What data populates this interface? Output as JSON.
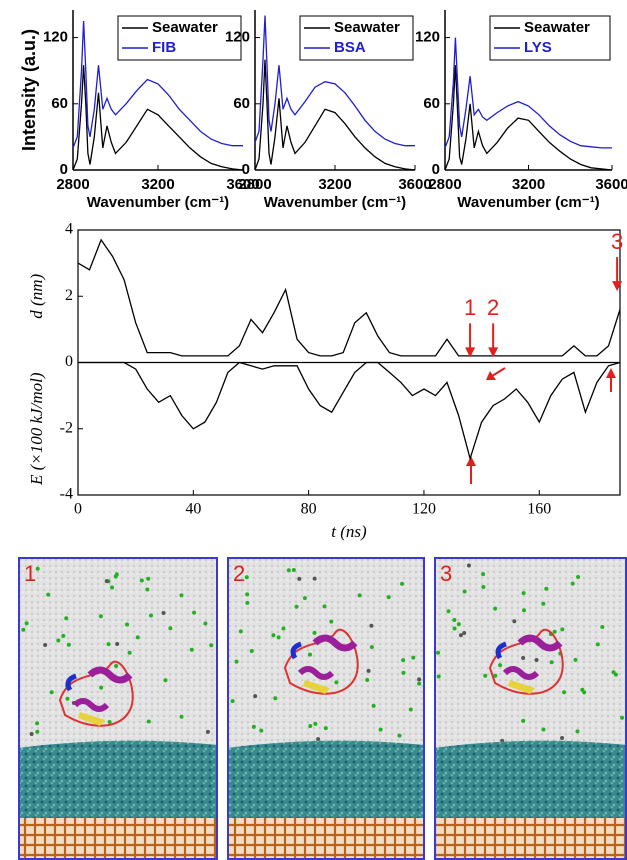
{
  "chart_data": [
    {
      "type": "line",
      "ylabel": "Intensity (a.u.)",
      "xlabel": "Wavenumber (cm⁻¹)",
      "xlim": [
        2800,
        3600
      ],
      "xticks": [
        2800,
        3200,
        3600
      ],
      "ylim": [
        0,
        145
      ],
      "yticks": [
        0,
        60,
        120
      ],
      "legend": "upper right",
      "x": [
        2800,
        2820,
        2840,
        2850,
        2860,
        2870,
        2880,
        2900,
        2920,
        2940,
        2960,
        2980,
        3000,
        3050,
        3100,
        3150,
        3200,
        3250,
        3300,
        3350,
        3400,
        3450,
        3500,
        3550,
        3600
      ],
      "series": [
        {
          "name": "Seawater",
          "color": "#000000",
          "values": [
            0,
            10,
            60,
            95,
            60,
            15,
            5,
            30,
            70,
            20,
            40,
            25,
            15,
            25,
            40,
            55,
            50,
            40,
            30,
            20,
            12,
            6,
            3,
            1,
            0
          ]
        },
        {
          "name": "FIB",
          "color": "#1f1fd0",
          "values": [
            20,
            30,
            90,
            135,
            90,
            40,
            30,
            55,
            95,
            55,
            65,
            55,
            50,
            60,
            72,
            82,
            78,
            68,
            55,
            45,
            35,
            28,
            24,
            22,
            22
          ]
        }
      ]
    },
    {
      "type": "line",
      "xlabel": "Wavenumber (cm⁻¹)",
      "xlim": [
        2800,
        3600
      ],
      "xticks": [
        2800,
        3200,
        3600
      ],
      "ylim": [
        0,
        145
      ],
      "yticks": [
        0,
        60,
        120
      ],
      "legend": "upper right",
      "x": [
        2800,
        2820,
        2840,
        2850,
        2860,
        2870,
        2880,
        2900,
        2920,
        2940,
        2960,
        2980,
        3000,
        3050,
        3100,
        3150,
        3200,
        3250,
        3300,
        3350,
        3400,
        3450,
        3500,
        3550,
        3600
      ],
      "series": [
        {
          "name": "Seawater",
          "color": "#000000",
          "values": [
            0,
            10,
            60,
            100,
            60,
            15,
            5,
            30,
            65,
            20,
            40,
            25,
            15,
            25,
            40,
            55,
            52,
            42,
            30,
            20,
            12,
            6,
            3,
            1,
            0
          ]
        },
        {
          "name": "BSA",
          "color": "#1f1fd0",
          "values": [
            25,
            35,
            100,
            140,
            95,
            45,
            35,
            60,
            95,
            55,
            65,
            55,
            50,
            62,
            75,
            80,
            78,
            70,
            58,
            45,
            35,
            28,
            24,
            22,
            22
          ]
        }
      ]
    },
    {
      "type": "line",
      "xlabel": "Wavenumber (cm⁻¹)",
      "xlim": [
        2800,
        3600
      ],
      "xticks": [
        2800,
        3200,
        3600
      ],
      "ylim": [
        0,
        145
      ],
      "yticks": [
        0,
        60,
        120
      ],
      "legend": "upper right",
      "x": [
        2800,
        2820,
        2840,
        2850,
        2860,
        2870,
        2880,
        2900,
        2920,
        2940,
        2960,
        2980,
        3000,
        3050,
        3100,
        3150,
        3200,
        3250,
        3300,
        3350,
        3400,
        3450,
        3500,
        3550,
        3600
      ],
      "series": [
        {
          "name": "Seawater",
          "color": "#000000",
          "values": [
            0,
            10,
            60,
            95,
            55,
            12,
            5,
            28,
            60,
            20,
            35,
            22,
            15,
            25,
            38,
            47,
            45,
            35,
            25,
            17,
            10,
            5,
            2,
            1,
            0
          ]
        },
        {
          "name": "LYS",
          "color": "#1f1fd0",
          "values": [
            20,
            30,
            80,
            120,
            80,
            40,
            30,
            55,
            85,
            50,
            55,
            48,
            45,
            52,
            58,
            62,
            58,
            50,
            40,
            32,
            26,
            22,
            21,
            20,
            20
          ]
        }
      ]
    },
    {
      "type": "line",
      "box": true,
      "zero_line": true,
      "ylabels": [
        "d (nm)",
        "E (×100 kJ/mol)"
      ],
      "xlabel": "t (ns)",
      "xlim": [
        0,
        188
      ],
      "xticks": [
        0,
        40,
        80,
        120,
        160
      ],
      "ylim": [
        -4,
        4
      ],
      "yticks": [
        4,
        2,
        0,
        -2,
        -4
      ],
      "x": [
        0,
        4,
        8,
        12,
        16,
        20,
        24,
        28,
        32,
        36,
        40,
        44,
        48,
        52,
        56,
        60,
        64,
        68,
        72,
        76,
        80,
        84,
        88,
        92,
        96,
        100,
        104,
        108,
        112,
        116,
        120,
        124,
        128,
        132,
        136,
        140,
        144,
        148,
        152,
        156,
        160,
        164,
        168,
        172,
        176,
        180,
        184,
        188
      ],
      "series": [
        {
          "color": "#000000",
          "values": [
            3.0,
            2.8,
            3.7,
            3.2,
            2.5,
            1.2,
            0.3,
            0.3,
            0.3,
            0.2,
            0.2,
            0.2,
            0.2,
            0.2,
            0.5,
            1.3,
            0.9,
            1.5,
            2.2,
            0.7,
            0.3,
            0.2,
            0.2,
            0.3,
            1.2,
            1.5,
            0.8,
            0.3,
            0.2,
            0.2,
            0.2,
            0.2,
            0.7,
            0.2,
            0.2,
            0.2,
            0.2,
            0.2,
            0.2,
            0.2,
            0.2,
            0.2,
            0.2,
            0.5,
            0.2,
            0.2,
            0.5,
            1.6
          ]
        },
        {
          "color": "#000000",
          "values": [
            0,
            0,
            0,
            0,
            0,
            -0.2,
            -0.8,
            -1.2,
            -1.0,
            -1.6,
            -2.0,
            -1.8,
            -1.2,
            -0.3,
            0,
            -0.1,
            -0.2,
            -0.1,
            -0.1,
            -0.1,
            -0.8,
            -1.3,
            -1.5,
            -0.9,
            -0.3,
            0,
            0,
            -0.3,
            -0.6,
            -1.0,
            -0.8,
            -1.0,
            -0.6,
            -1.6,
            -2.9,
            -1.8,
            -1.3,
            -1.1,
            -0.8,
            -1.2,
            -1.8,
            -1.0,
            -0.5,
            -0.3,
            -1.5,
            -0.6,
            -0.1,
            0
          ]
        }
      ],
      "annotations": [
        {
          "text": "1",
          "x": 136,
          "y": 1.0
        },
        {
          "text": "2",
          "x": 144,
          "y": 1.0
        },
        {
          "text": "3",
          "x": 187,
          "y": 3.0
        }
      ]
    }
  ],
  "snapshot_labels": [
    "1",
    "2",
    "3"
  ]
}
